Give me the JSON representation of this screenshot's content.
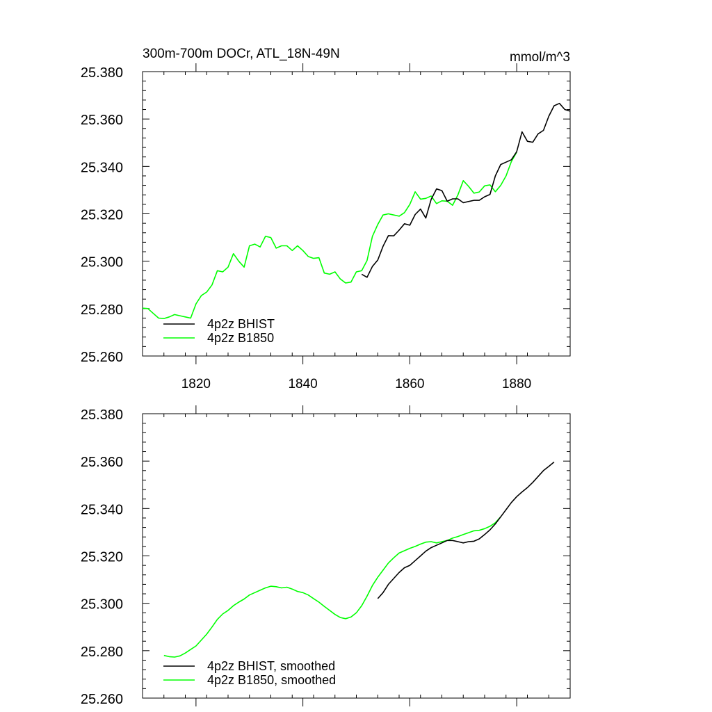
{
  "chart_data": [
    {
      "type": "line",
      "title": "300m-700m DOCr, ATL_18N-49N",
      "units": "mmol/m^3",
      "xlim": [
        1810,
        1890
      ],
      "ylim": [
        25.26,
        25.38
      ],
      "xticks": [
        "1820",
        "1840",
        "1860",
        "1880"
      ],
      "yticks": [
        "25.260",
        "25.280",
        "25.300",
        "25.320",
        "25.340",
        "25.360",
        "25.380"
      ],
      "show_x_tick_labels": true,
      "legend_position": "bottom-left",
      "series": [
        {
          "name": "4p2z BHIST",
          "color": "#000000",
          "x": [
            1851,
            1852,
            1853,
            1854,
            1855,
            1856,
            1857,
            1858,
            1859,
            1860,
            1861,
            1862,
            1863,
            1864,
            1865,
            1866,
            1867,
            1868,
            1869,
            1870,
            1871,
            1872,
            1873,
            1874,
            1875,
            1876,
            1877,
            1878,
            1879,
            1880,
            1881,
            1882,
            1883,
            1884,
            1885,
            1886,
            1887,
            1888,
            1889,
            1890
          ],
          "y": [
            25.2945,
            25.2932,
            25.2978,
            25.3005,
            25.3063,
            25.3108,
            25.3107,
            25.3131,
            25.3158,
            25.3152,
            25.3197,
            25.322,
            25.3182,
            25.3261,
            25.3305,
            25.3298,
            25.3253,
            25.3263,
            25.3263,
            25.3247,
            25.3252,
            25.3257,
            25.3257,
            25.3272,
            25.3282,
            25.336,
            25.3408,
            25.3418,
            25.3428,
            25.3462,
            25.3546,
            25.3506,
            25.3502,
            25.3537,
            25.3552,
            25.3612,
            25.3656,
            25.3666,
            25.364,
            25.3633
          ]
        },
        {
          "name": "4p2z B1850",
          "color": "#00ff00",
          "x": [
            1810,
            1811,
            1812,
            1813,
            1814,
            1815,
            1816,
            1817,
            1818,
            1819,
            1820,
            1821,
            1822,
            1823,
            1824,
            1825,
            1826,
            1827,
            1828,
            1829,
            1830,
            1831,
            1832,
            1833,
            1834,
            1835,
            1836,
            1837,
            1838,
            1839,
            1840,
            1841,
            1842,
            1843,
            1844,
            1845,
            1846,
            1847,
            1848,
            1849,
            1850,
            1851,
            1852,
            1853,
            1854,
            1855,
            1856,
            1857,
            1858,
            1859,
            1860,
            1861,
            1862,
            1863,
            1864,
            1865,
            1866,
            1867,
            1868,
            1869,
            1870,
            1871,
            1872,
            1873,
            1874,
            1875,
            1876,
            1877,
            1878,
            1879,
            1880
          ],
          "y": [
            25.2802,
            25.28,
            25.278,
            25.276,
            25.2758,
            25.2765,
            25.2775,
            25.277,
            25.2765,
            25.276,
            25.282,
            25.2855,
            25.287,
            25.29,
            25.296,
            25.2955,
            25.2975,
            25.3032,
            25.3,
            25.2975,
            25.3065,
            25.3072,
            25.306,
            25.3105,
            25.31,
            25.3055,
            25.3065,
            25.3065,
            25.3045,
            25.3065,
            25.3045,
            25.302,
            25.3012,
            25.3015,
            25.295,
            25.2945,
            25.2955,
            25.2925,
            25.2908,
            25.2912,
            25.2955,
            25.296,
            25.3003,
            25.3105,
            25.3155,
            25.3195,
            25.32,
            25.3195,
            25.319,
            25.3205,
            25.324,
            25.3293,
            25.3262,
            25.3265,
            25.3275,
            25.3243,
            25.3255,
            25.3253,
            25.3236,
            25.328,
            25.334,
            25.3316,
            25.3287,
            25.3292,
            25.3318,
            25.3322,
            25.3293,
            25.332,
            25.336,
            25.342,
            25.346
          ]
        }
      ]
    },
    {
      "type": "line",
      "title": "",
      "xlim": [
        1810,
        1890
      ],
      "ylim": [
        25.26,
        25.38
      ],
      "xticks": [
        "1820",
        "1840",
        "1860",
        "1880"
      ],
      "yticks": [
        "25.260",
        "25.280",
        "25.300",
        "25.320",
        "25.340",
        "25.360",
        "25.380"
      ],
      "show_x_tick_labels": false,
      "legend_position": "bottom-left",
      "series": [
        {
          "name": "4p2z BHIST, smoothed",
          "color": "#000000",
          "x": [
            1854,
            1855,
            1856,
            1857,
            1858,
            1859,
            1860,
            1861,
            1862,
            1863,
            1864,
            1865,
            1866,
            1867,
            1868,
            1869,
            1870,
            1871,
            1872,
            1873,
            1874,
            1875,
            1876,
            1877,
            1878,
            1879,
            1880,
            1881,
            1882,
            1883,
            1884,
            1885,
            1886,
            1887
          ],
          "y": [
            25.302,
            25.3045,
            25.308,
            25.3105,
            25.313,
            25.315,
            25.316,
            25.318,
            25.32,
            25.322,
            25.3235,
            25.3245,
            25.3255,
            25.3265,
            25.3265,
            25.326,
            25.3255,
            25.326,
            25.3262,
            25.3272,
            25.329,
            25.331,
            25.3335,
            25.3365,
            25.3395,
            25.3425,
            25.345,
            25.347,
            25.3488,
            25.351,
            25.3535,
            25.356,
            25.3578,
            25.3596
          ]
        },
        {
          "name": "4p2z B1850, smoothed",
          "color": "#00ff00",
          "x": [
            1814,
            1815,
            1816,
            1817,
            1818,
            1819,
            1820,
            1821,
            1822,
            1823,
            1824,
            1825,
            1826,
            1827,
            1828,
            1829,
            1830,
            1831,
            1832,
            1833,
            1834,
            1835,
            1836,
            1837,
            1838,
            1839,
            1840,
            1841,
            1842,
            1843,
            1844,
            1845,
            1846,
            1847,
            1848,
            1849,
            1850,
            1851,
            1852,
            1853,
            1854,
            1855,
            1856,
            1857,
            1858,
            1859,
            1860,
            1861,
            1862,
            1863,
            1864,
            1865,
            1866,
            1867,
            1868,
            1869,
            1870,
            1871,
            1872,
            1873,
            1874,
            1875,
            1876,
            1877
          ],
          "y": [
            25.278,
            25.2775,
            25.2773,
            25.2778,
            25.279,
            25.2805,
            25.282,
            25.2845,
            25.287,
            25.29,
            25.2932,
            25.2955,
            25.297,
            25.299,
            25.3005,
            25.3018,
            25.3035,
            25.3045,
            25.3055,
            25.3065,
            25.3072,
            25.307,
            25.3065,
            25.3068,
            25.306,
            25.305,
            25.3045,
            25.3035,
            25.302,
            25.3005,
            25.2987,
            25.297,
            25.2953,
            25.294,
            25.2935,
            25.2942,
            25.296,
            25.299,
            25.303,
            25.3075,
            25.311,
            25.314,
            25.317,
            25.3192,
            25.3212,
            25.3222,
            25.3232,
            25.324,
            25.325,
            25.3258,
            25.326,
            25.3255,
            25.326,
            25.3265,
            25.3275,
            25.3282,
            25.329,
            25.3298,
            25.3306,
            25.3308,
            25.3315,
            25.3325,
            25.334,
            25.3365
          ]
        }
      ]
    }
  ]
}
